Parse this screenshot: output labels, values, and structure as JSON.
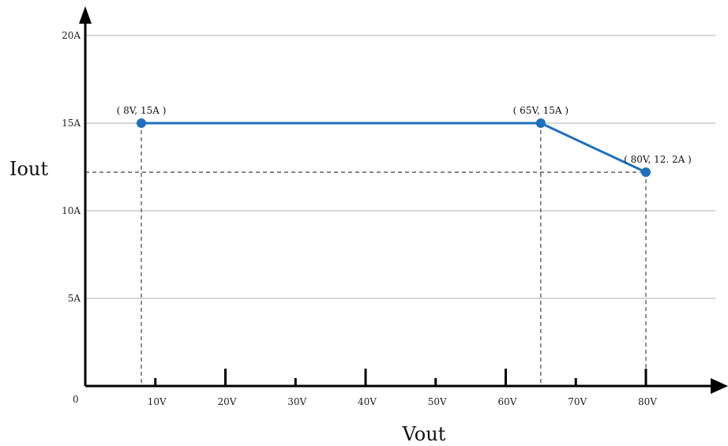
{
  "chart_data": {
    "type": "line",
    "title": "",
    "xlabel": "Vout",
    "ylabel": "Iout",
    "origin_label": "0",
    "x_ticks": [
      {
        "value": 10,
        "label": "10V"
      },
      {
        "value": 20,
        "label": "20V"
      },
      {
        "value": 30,
        "label": "30V"
      },
      {
        "value": 40,
        "label": "40V"
      },
      {
        "value": 50,
        "label": "50V"
      },
      {
        "value": 60,
        "label": "60V"
      },
      {
        "value": 70,
        "label": "70V"
      },
      {
        "value": 80,
        "label": "80V"
      }
    ],
    "y_ticks": [
      {
        "value": 5,
        "label": "5A"
      },
      {
        "value": 10,
        "label": "10A"
      },
      {
        "value": 15,
        "label": "15A"
      },
      {
        "value": 20,
        "label": "20A"
      }
    ],
    "xlim": [
      0,
      90
    ],
    "ylim": [
      0,
      20
    ],
    "grid": "horizontal",
    "series": [
      {
        "x": [
          8,
          65,
          80
        ],
        "y": [
          15,
          15,
          12.2
        ],
        "color": "#1f6fbf"
      }
    ],
    "points": [
      {
        "x": 8,
        "y": 15,
        "label": "( 8V, 15A )"
      },
      {
        "x": 65,
        "y": 15,
        "label": "( 65V, 15A )"
      },
      {
        "x": 80,
        "y": 12.2,
        "label": "( 80V, 12. 2A )"
      }
    ],
    "colors": {
      "line": "#1f6fbf",
      "grid": "#bfbfbf",
      "axis": "#000000",
      "guide": "#444444"
    }
  }
}
